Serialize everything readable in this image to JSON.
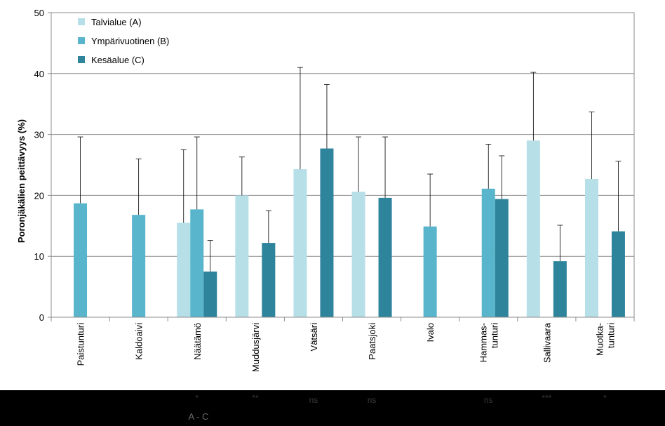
{
  "chart_data": {
    "type": "bar",
    "title": "",
    "xlabel": "",
    "ylabel": "Poronjäkälien peittävyys (%)",
    "ylim": [
      0,
      50
    ],
    "yticks": [
      0,
      10,
      20,
      30,
      40,
      50
    ],
    "grid": true,
    "legend_position": "top-left",
    "categories": [
      [
        "Paistunturi"
      ],
      [
        "Kaldoaivi"
      ],
      [
        "Näätämö"
      ],
      [
        "Muddusjärvi"
      ],
      [
        "Vätsäri"
      ],
      [
        "Paatsjoki"
      ],
      [
        "Ivalo"
      ],
      [
        "Hammas-",
        "tunturi"
      ],
      [
        "Sallivaara"
      ],
      [
        "Muotka-",
        "tunturi"
      ]
    ],
    "series": [
      {
        "name": "Talvialue (A)",
        "color": "#b7dfe8",
        "values": [
          null,
          null,
          15.5,
          20.0,
          24.3,
          20.6,
          null,
          null,
          29.0,
          22.7
        ],
        "error_upper": [
          null,
          null,
          27.5,
          26.3,
          41.0,
          29.6,
          null,
          null,
          40.2,
          33.7
        ]
      },
      {
        "name": "Ympärivuotinen (B)",
        "color": "#58b5cc",
        "values": [
          18.7,
          16.8,
          17.7,
          null,
          null,
          null,
          14.9,
          21.1,
          null,
          null
        ],
        "error_upper": [
          29.6,
          26.0,
          29.6,
          null,
          null,
          null,
          23.5,
          28.4,
          null,
          null
        ]
      },
      {
        "name": "Kesäalue (C)",
        "color": "#2e849b",
        "values": [
          null,
          null,
          7.5,
          12.2,
          27.7,
          19.6,
          null,
          19.4,
          9.2,
          14.1
        ],
        "error_upper": [
          null,
          null,
          12.6,
          17.5,
          38.2,
          29.6,
          null,
          26.5,
          15.1,
          25.6
        ]
      }
    ],
    "significance": [
      "",
      "",
      "*",
      "**",
      "ns",
      "ns",
      "",
      "ns",
      "***",
      "*"
    ],
    "comparison": "A - C"
  }
}
